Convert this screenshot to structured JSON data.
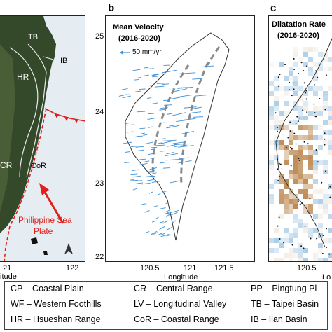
{
  "panels": {
    "a": {
      "letter": "",
      "labels": {
        "tb": "TB",
        "ib": "IB",
        "hr": "HR",
        "cr": "CR",
        "cor": "CoR"
      },
      "plate_label_line1": "Philippine Sea",
      "plate_label_line2": "Plate",
      "x_ticks": [
        "21",
        "122"
      ],
      "x_axis_label": "itude",
      "colors": {
        "land": "#34482a",
        "land_light": "#5d7047",
        "sea": "#dfe8ef",
        "plate_boundary": "#e0201b"
      }
    },
    "b": {
      "letter": "b",
      "title_line1": "Mean Velocity",
      "title_line2": "(2016-2020)",
      "scale_label": "50 mm/yr",
      "x_ticks": [
        "120.5",
        "121",
        "121.5"
      ],
      "y_ticks": [
        "25",
        "24",
        "23",
        "22"
      ],
      "x_axis_label": "Longitude",
      "colors": {
        "vector": "#3d8fd6",
        "coast": "#333333",
        "boundary_dash": "#8a8a8a"
      }
    },
    "c": {
      "letter": "c",
      "title_line1": "Dilatation Rate",
      "title_line2": "(2016-2020)",
      "x_ticks": [
        "120.5"
      ],
      "x_axis_label": "Lo",
      "colors": {
        "expansion": "#b9834a",
        "contraction": "#a8cbe6",
        "neutral": "#f3ece3"
      }
    }
  },
  "legend": {
    "col1": [
      "CP – Coastal Plain",
      "WF – Western Foothills",
      "HR – Hsueshan Range"
    ],
    "col2": [
      "CR – Central Range",
      "LV – Longitudinal Valley",
      "CoR – Coastal Range"
    ],
    "col3": [
      "PP – Pingtung Pl",
      "TB – Taipei Basin",
      "IB – Ilan Basin"
    ]
  }
}
